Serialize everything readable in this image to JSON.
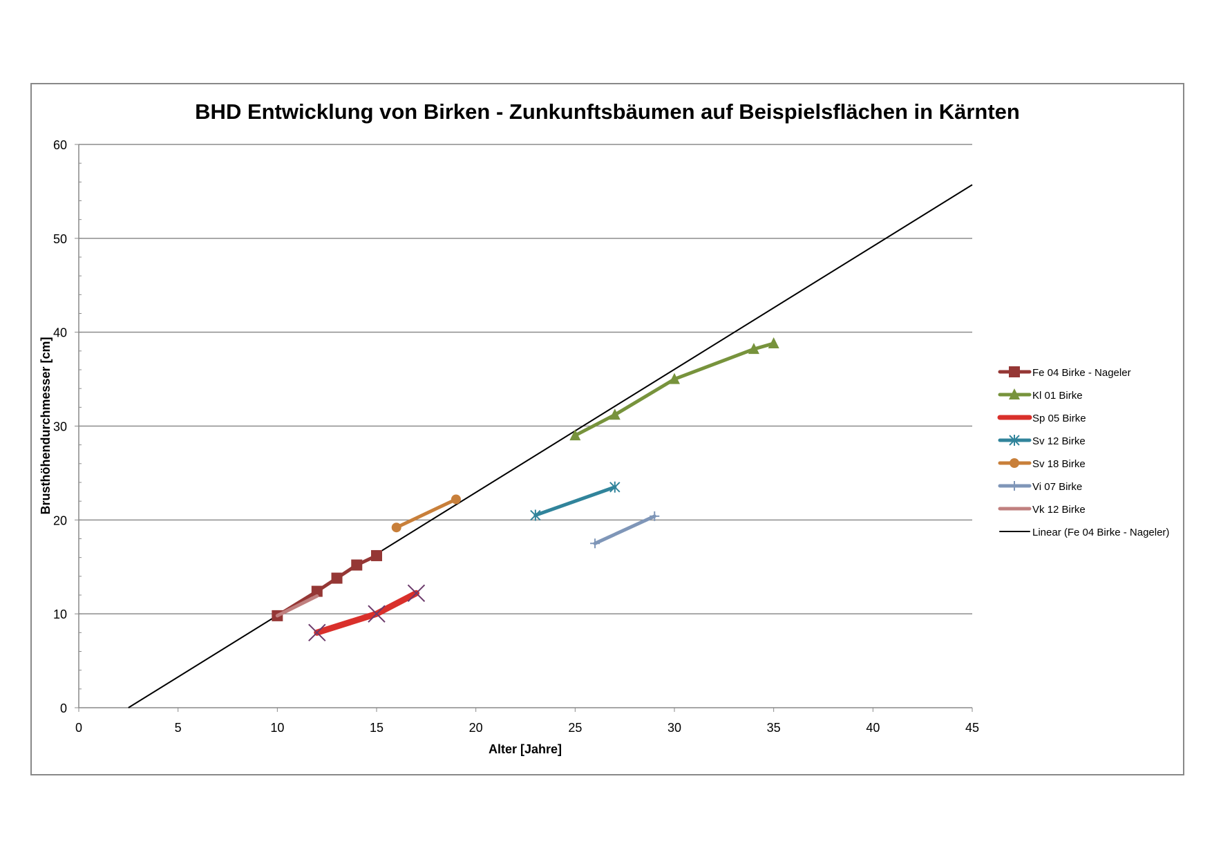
{
  "chart_data": {
    "type": "line",
    "title": "BHD Entwicklung von Birken - Zunkunftsbäumen auf Beispielsflächen in Kärnten",
    "xlabel": "Alter [Jahre]",
    "ylabel": "Brusthöhendurchmesser [cm]",
    "xlim": [
      0,
      45
    ],
    "ylim": [
      0,
      60
    ],
    "xticks": [
      0,
      5,
      10,
      15,
      20,
      25,
      30,
      35,
      40,
      45
    ],
    "yticks": [
      0,
      10,
      20,
      30,
      40,
      50,
      60
    ],
    "grid": "horizontal major",
    "legend": "right",
    "series": [
      {
        "name": "Fe 04 Birke - Nageler",
        "color": "#953735",
        "marker": "square",
        "x": [
          10,
          12,
          13,
          14,
          15
        ],
        "y": [
          9.8,
          12.4,
          13.8,
          15.2,
          16.2
        ]
      },
      {
        "name": "Kl 01 Birke",
        "color": "#77933C",
        "marker": "triangle",
        "x": [
          25,
          27,
          30,
          34,
          35
        ],
        "y": [
          29.0,
          31.2,
          35.0,
          38.2,
          38.8
        ]
      },
      {
        "name": "Sp 05 Birke",
        "color": "#D9302B",
        "marker": "x",
        "x": [
          12,
          15,
          17
        ],
        "y": [
          8.0,
          10.0,
          12.2
        ]
      },
      {
        "name": "Sv 12 Birke",
        "color": "#31849B",
        "marker": "star",
        "x": [
          23,
          27
        ],
        "y": [
          20.5,
          23.5
        ]
      },
      {
        "name": "Sv 18 Birke",
        "color": "#C87F3A",
        "marker": "circle",
        "x": [
          16,
          19
        ],
        "y": [
          19.2,
          22.2
        ]
      },
      {
        "name": "Vi 07 Birke",
        "color": "#7F96B8",
        "marker": "plus",
        "x": [
          26,
          29
        ],
        "y": [
          17.5,
          20.4
        ]
      },
      {
        "name": "Vk 12 Birke",
        "color": "#C0807F",
        "marker": "none",
        "x": [
          10,
          12
        ],
        "y": [
          9.8,
          11.9
        ]
      }
    ],
    "trendline": {
      "name": "Linear (Fe 04 Birke - Nageler)",
      "color": "#000000",
      "x": [
        2.5,
        45
      ],
      "y": [
        0,
        55.7
      ]
    }
  }
}
